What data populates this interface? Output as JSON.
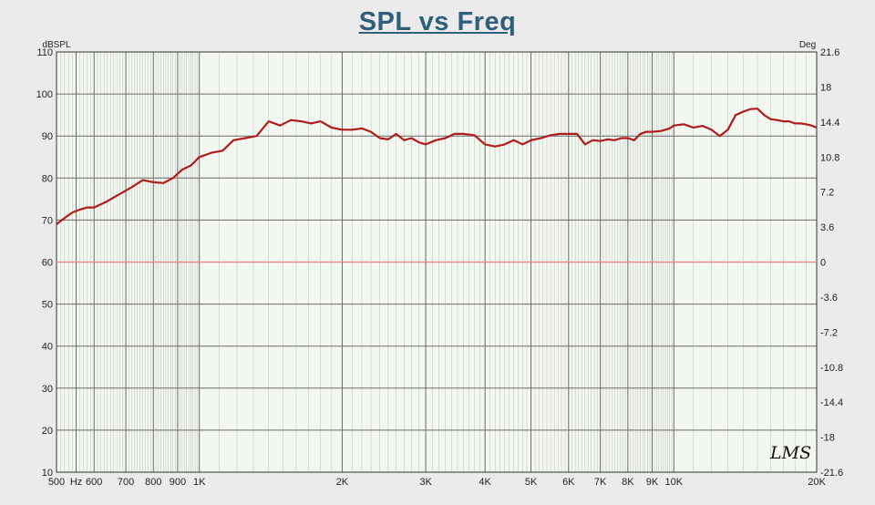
{
  "chart_data": {
    "type": "line",
    "title": "SPL vs Freq",
    "y_unit_left": "dBSPL",
    "y_unit_right": "Deg",
    "xscale": "log",
    "xlim": [
      500,
      20000
    ],
    "ylim": [
      10,
      110
    ],
    "y2lim": [
      -21.6,
      21.6
    ],
    "x_ticks": [
      {
        "value": 500,
        "label": "500"
      },
      {
        "value": 550,
        "label": "Hz"
      },
      {
        "value": 600,
        "label": "600"
      },
      {
        "value": 700,
        "label": "700"
      },
      {
        "value": 800,
        "label": "800"
      },
      {
        "value": 900,
        "label": "900"
      },
      {
        "value": 1000,
        "label": "1K"
      },
      {
        "value": 2000,
        "label": "2K"
      },
      {
        "value": 3000,
        "label": "3K"
      },
      {
        "value": 4000,
        "label": "4K"
      },
      {
        "value": 5000,
        "label": "5K"
      },
      {
        "value": 6000,
        "label": "6K"
      },
      {
        "value": 7000,
        "label": "7K"
      },
      {
        "value": 8000,
        "label": "8K"
      },
      {
        "value": 9000,
        "label": "9K"
      },
      {
        "value": 10000,
        "label": "10K"
      },
      {
        "value": 20000,
        "label": "20K"
      }
    ],
    "y_ticks": [
      "10",
      "20",
      "30",
      "40",
      "50",
      "60",
      "70",
      "80",
      "90",
      "100",
      "110"
    ],
    "y2_ticks": [
      "-21.6",
      "-18",
      "-14.4",
      "-10.8",
      "-7.2",
      "-3.6",
      "0",
      "3.6",
      "7.2",
      "10.8",
      "14.4",
      "18",
      "21.6"
    ],
    "grid": true,
    "colors": {
      "spl_line": "#b01c1c",
      "phase_line": "#f08080",
      "plot_bg": "#f2f8ef",
      "grid": "#909090"
    },
    "series": [
      {
        "x": [
          500,
          520,
          540,
          560,
          580,
          600,
          640,
          680,
          720,
          760,
          800,
          840,
          880,
          920,
          960,
          1000,
          1060,
          1120,
          1180,
          1250,
          1320,
          1400,
          1480,
          1560,
          1640,
          1720,
          1800,
          1900,
          2000,
          2100,
          2200,
          2300,
          2400,
          2500,
          2600,
          2700,
          2800,
          2900,
          3000,
          3150,
          3300,
          3450,
          3600,
          3800,
          4000,
          4200,
          4400,
          4600,
          4800,
          5000,
          5250,
          5500,
          5750,
          6000,
          6250,
          6500,
          6750,
          7000,
          7250,
          7500,
          7750,
          8000,
          8250,
          8500,
          8750,
          9000,
          9400,
          9800,
          10000,
          10500,
          11000,
          11500,
          12000,
          12500,
          13000,
          13500,
          14000,
          14500,
          15000,
          15500,
          16000,
          16500,
          17000,
          17500,
          18000,
          18500,
          19000,
          19500,
          20000
        ],
        "values": [
          69,
          70.5,
          71.8,
          72.5,
          73,
          73,
          74.5,
          76.2,
          77.8,
          79.5,
          79,
          78.8,
          80,
          82,
          83,
          85,
          86,
          86.5,
          89,
          89.5,
          90,
          93.5,
          92.5,
          93.8,
          93.5,
          93,
          93.5,
          92,
          91.5,
          91.5,
          91.8,
          91,
          89.5,
          89.2,
          90.5,
          89,
          89.5,
          88.5,
          88,
          89,
          89.5,
          90.5,
          90.5,
          90.2,
          88,
          87.5,
          88,
          89,
          88,
          89,
          89.5,
          90.2,
          90.5,
          90.5,
          90.5,
          88,
          89,
          88.8,
          89.2,
          89,
          89.5,
          89.5,
          89,
          90.5,
          91,
          91,
          91.2,
          91.8,
          92.5,
          92.8,
          92,
          92.4,
          91.5,
          90,
          91.5,
          95,
          95.8,
          96.4,
          96.5,
          95,
          94,
          93.8,
          93.5,
          93.5,
          93,
          93,
          92.8,
          92.5,
          92
        ]
      },
      {
        "x": [
          500,
          20000
        ],
        "values": [
          0,
          0
        ]
      }
    ],
    "annotation": "LMS"
  }
}
